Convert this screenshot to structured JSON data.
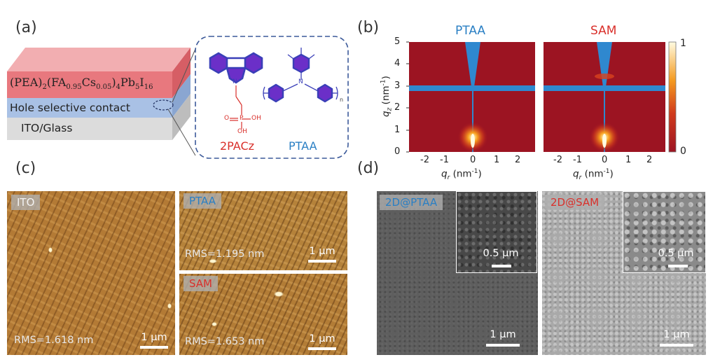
{
  "panels": {
    "a": "(a)",
    "b": "(b)",
    "c": "(c)",
    "d": "(d)"
  },
  "panel_a": {
    "layer_top_main": "(PEA)",
    "layer_top_sub1": "2",
    "layer_top_mid1": "(FA",
    "layer_top_sub2": "0.95",
    "layer_top_mid2": "Cs",
    "layer_top_sub3": "0.05",
    "layer_top_mid3": ")",
    "layer_top_sub4": "4",
    "layer_top_mid4": "Pb",
    "layer_top_sub5": "5",
    "layer_top_mid5": "I",
    "layer_top_sub6": "16",
    "layer_middle": "Hole selective contact",
    "layer_bottom": "ITO/Glass",
    "molecule1_name": "2PACz",
    "molecule2_name": "PTAA",
    "mol_o": "O",
    "mol_oh1": "OH",
    "mol_oh2": "OH",
    "mol_p": "P",
    "mol_n": "N",
    "mol_n2": "N",
    "mol_sub_n": "n",
    "colors": {
      "perovskite": "#e8787e",
      "contact": "#a8c0e4",
      "ito": "#d8d8d8",
      "red_label": "#d9302b",
      "blue_label": "#2a7fc4"
    }
  },
  "panel_b": {
    "maps": [
      {
        "title": "PTAA"
      },
      {
        "title": "SAM"
      }
    ],
    "ylabel_q": "q",
    "ylabel_sub": "z",
    "ylabel_unit": " (nm",
    "ylabel_sup": "-1",
    "ylabel_end": ")",
    "xlabel_q": "q",
    "xlabel_sub": "r",
    "xlabel_unit": " (nm",
    "xlabel_sup": "-1",
    "xlabel_end": ")",
    "yticks": [
      "5",
      "4",
      "3",
      "2",
      "1",
      "0"
    ],
    "xticks": [
      "-2",
      "-1",
      "0",
      "1",
      "2"
    ],
    "colorbar": {
      "max": "1",
      "min": "0"
    }
  },
  "panel_c": {
    "ito": {
      "tag": "ITO",
      "rms": "RMS=1.618 nm",
      "scale": "1 μm"
    },
    "ptaa": {
      "tag": "PTAA",
      "rms": "RMS=1.195 nm",
      "scale": "1 μm"
    },
    "sam": {
      "tag": "SAM",
      "rms": "RMS=1.653 nm",
      "scale": "1 μm"
    }
  },
  "panel_d": {
    "left": {
      "tag": "2D@PTAA",
      "inset_scale": "0.5 μm",
      "scale": "1 μm"
    },
    "right": {
      "tag": "2D@SAM",
      "inset_scale": "0.5 μm",
      "scale": "1 μm"
    }
  }
}
